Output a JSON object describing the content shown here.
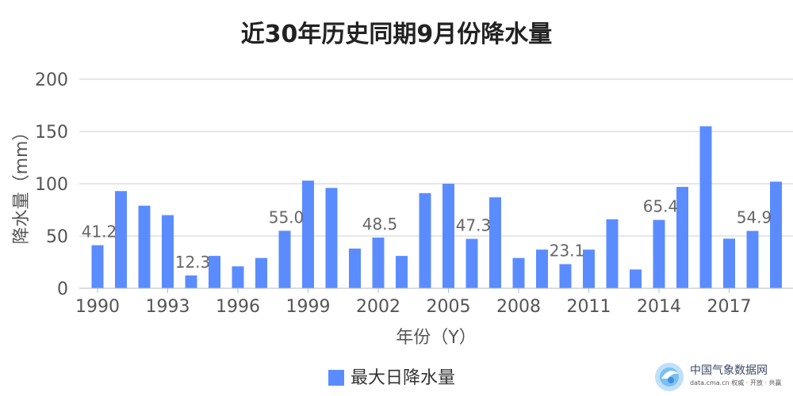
{
  "chart_data": {
    "type": "bar",
    "title": "近30年历史同期9月份降水量",
    "xlabel": "年份（Y）",
    "ylabel": "降水量（mm）",
    "ylim": [
      0,
      200
    ],
    "yticks": [
      0,
      50,
      100,
      150,
      200
    ],
    "xticks": [
      "1990",
      "1993",
      "1996",
      "1999",
      "2002",
      "2005",
      "2008",
      "2011",
      "2014",
      "2017"
    ],
    "grid": true,
    "legend_position": "bottom",
    "color": "#5B8CFF",
    "categories": [
      "1990",
      "1991",
      "1992",
      "1993",
      "1994",
      "1995",
      "1996",
      "1997",
      "1998",
      "1999",
      "2000",
      "2001",
      "2002",
      "2003",
      "2004",
      "2005",
      "2006",
      "2007",
      "2008",
      "2009",
      "2010",
      "2011",
      "2012",
      "2013",
      "2014",
      "2015",
      "2016",
      "2017",
      "2018",
      "2019"
    ],
    "series": [
      {
        "name": "最大日降水量",
        "values": [
          41.2,
          93,
          79,
          70,
          12.3,
          31,
          21,
          29,
          55.0,
          103,
          96,
          38,
          48.5,
          31,
          91,
          100,
          47.3,
          87,
          29,
          37,
          23.1,
          37,
          66,
          18,
          65.4,
          97,
          155,
          47.5,
          54.9,
          102
        ],
        "labels": {
          "1990": "41.2",
          "1994": "12.3",
          "1998": "55.0",
          "2002": "48.5",
          "2006": "47.3",
          "2010": "23.1",
          "2014": "65.4",
          "2018": "54.9"
        }
      }
    ]
  },
  "watermark": {
    "text": "中国气象数据网",
    "subtext": "data.cma.cn 权威 · 开放 · 共赢"
  }
}
